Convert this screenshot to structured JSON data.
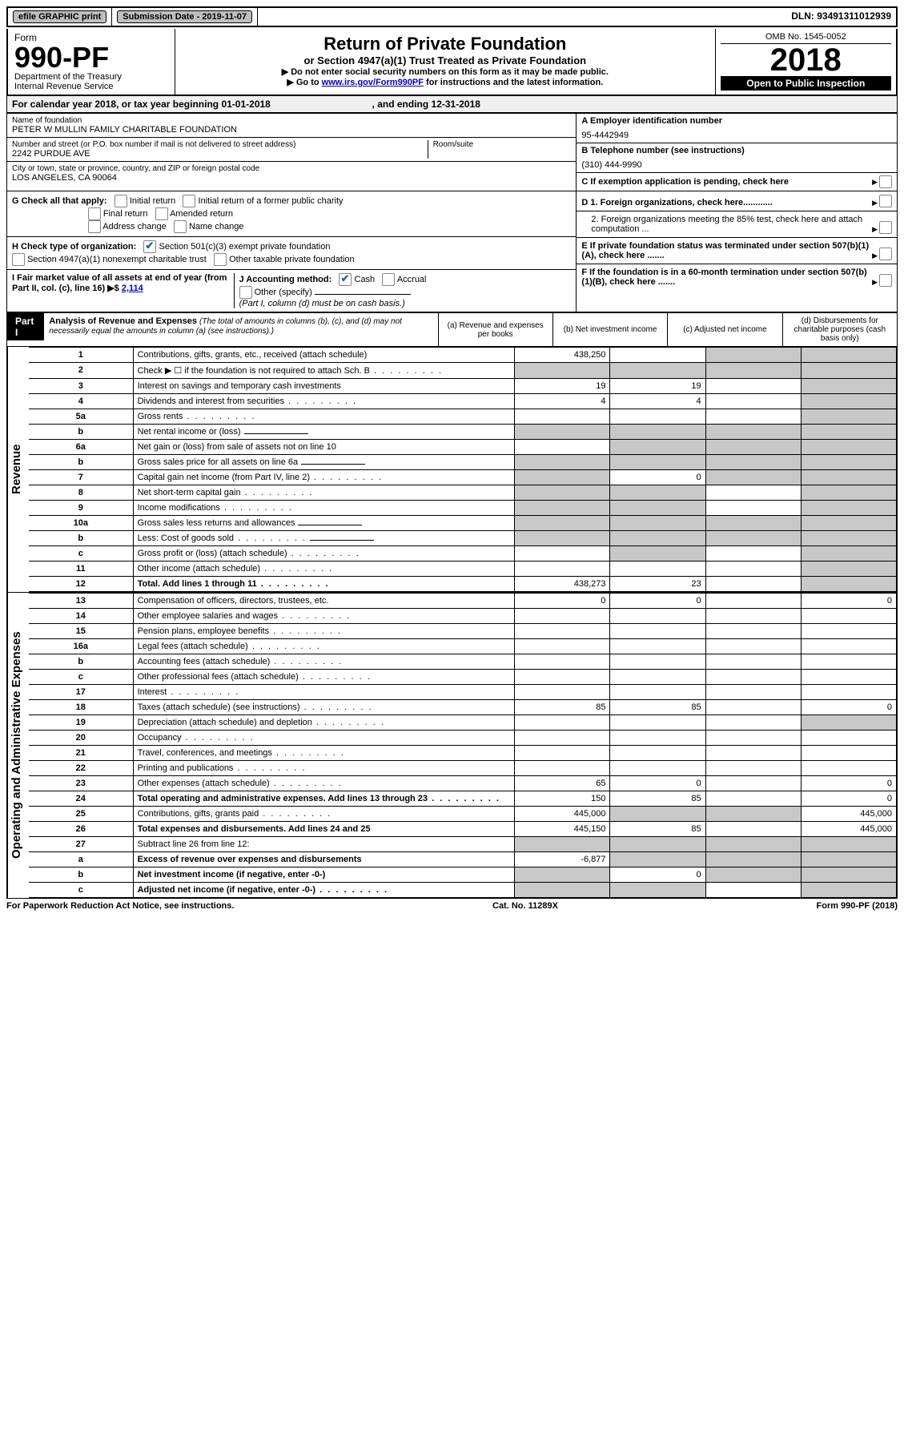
{
  "topbar": {
    "efile": "efile GRAPHIC print",
    "sub_label": "Submission Date - 2019-11-07",
    "dln": "DLN: 93491311012939"
  },
  "header": {
    "form_word": "Form",
    "form_num": "990-PF",
    "dept": "Department of the Treasury",
    "irs": "Internal Revenue Service",
    "title": "Return of Private Foundation",
    "subtitle": "or Section 4947(a)(1) Trust Treated as Private Foundation",
    "instr1": "▶ Do not enter social security numbers on this form as it may be made public.",
    "instr2_pre": "▶ Go to ",
    "instr2_link": "www.irs.gov/Form990PF",
    "instr2_post": " for instructions and the latest information.",
    "omb": "OMB No. 1545-0052",
    "year": "2018",
    "inspection": "Open to Public Inspection"
  },
  "cal": {
    "text_pre": "For calendar year 2018, or tax year beginning ",
    "begin": "01-01-2018",
    "mid": ", and ending ",
    "end": "12-31-2018"
  },
  "info": {
    "name_label": "Name of foundation",
    "name_value": "PETER W MULLIN FAMILY CHARITABLE FOUNDATION",
    "addr_label": "Number and street (or P.O. box number if mail is not delivered to street address)",
    "addr_value": "2242 PURDUE AVE",
    "room_label": "Room/suite",
    "city_label": "City or town, state or province, country, and ZIP or foreign postal code",
    "city_value": "LOS ANGELES, CA  90064",
    "a_label": "A Employer identification number",
    "a_value": "95-4442949",
    "b_label": "B Telephone number (see instructions)",
    "b_value": "(310) 444-9990",
    "c_label": "C If exemption application is pending, check here"
  },
  "checks": {
    "g_label": "G Check all that apply:",
    "g_initial": "Initial return",
    "g_initial_former": "Initial return of a former public charity",
    "g_final": "Final return",
    "g_amended": "Amended return",
    "g_address": "Address change",
    "g_name": "Name change",
    "h_label": "H Check type of organization:",
    "h_501c3": "Section 501(c)(3) exempt private foundation",
    "h_4947": "Section 4947(a)(1) nonexempt charitable trust",
    "h_other": "Other taxable private foundation",
    "i_label": "I Fair market value of all assets at end of year (from Part II, col. (c), line 16) ▶$",
    "i_value": "2,114",
    "j_label": "J Accounting method:",
    "j_cash": "Cash",
    "j_accrual": "Accrual",
    "j_other": "Other (specify)",
    "j_note": "(Part I, column (d) must be on cash basis.)",
    "d1": "D 1. Foreign organizations, check here............",
    "d2": "2. Foreign organizations meeting the 85% test, check here and attach computation ...",
    "e": "E If private foundation status was terminated under section 507(b)(1)(A), check here .......",
    "f": "F If the foundation is in a 60-month termination under section 507(b)(1)(B), check here .......",
    "arrow": "▶"
  },
  "part1": {
    "label": "Part I",
    "title": "Analysis of Revenue and Expenses",
    "note": "(The total of amounts in columns (b), (c), and (d) may not necessarily equal the amounts in column (a) (see instructions).)",
    "col_a": "(a) Revenue and expenses per books",
    "col_b": "(b) Net investment income",
    "col_c": "(c) Adjusted net income",
    "col_d": "(d) Disbursements for charitable purposes (cash basis only)"
  },
  "sides": {
    "revenue": "Revenue",
    "expenses": "Operating and Administrative Expenses"
  },
  "rows": [
    {
      "n": "1",
      "desc": "Contributions, gifts, grants, etc., received (attach schedule)",
      "a": "438,250",
      "b": "",
      "c_sh": true,
      "d_sh": true
    },
    {
      "n": "2",
      "desc": "Check ▶ ☐ if the foundation is not required to attach Sch. B",
      "a": "",
      "b": "",
      "a_sh": true,
      "b_sh": true,
      "c_sh": true,
      "d_sh": true,
      "dots": true
    },
    {
      "n": "3",
      "desc": "Interest on savings and temporary cash investments",
      "a": "19",
      "b": "19",
      "c": "",
      "d_sh": true
    },
    {
      "n": "4",
      "desc": "Dividends and interest from securities",
      "a": "4",
      "b": "4",
      "c": "",
      "d_sh": true,
      "dots": true
    },
    {
      "n": "5a",
      "desc": "Gross rents",
      "a": "",
      "b": "",
      "c": "",
      "d_sh": true,
      "dots": true
    },
    {
      "n": "b",
      "desc": "Net rental income or (loss)",
      "a_sh": true,
      "b_sh": true,
      "c_sh": true,
      "d_sh": true,
      "underline": true
    },
    {
      "n": "6a",
      "desc": "Net gain or (loss) from sale of assets not on line 10",
      "a": "",
      "b_sh": true,
      "c_sh": true,
      "d_sh": true
    },
    {
      "n": "b",
      "desc": "Gross sales price for all assets on line 6a",
      "a_sh": true,
      "b_sh": true,
      "c_sh": true,
      "d_sh": true,
      "underline": true
    },
    {
      "n": "7",
      "desc": "Capital gain net income (from Part IV, line 2)",
      "a_sh": true,
      "b": "0",
      "c_sh": true,
      "d_sh": true,
      "dots": true
    },
    {
      "n": "8",
      "desc": "Net short-term capital gain",
      "a_sh": true,
      "b_sh": true,
      "c": "",
      "d_sh": true,
      "dots": true
    },
    {
      "n": "9",
      "desc": "Income modifications",
      "a_sh": true,
      "b_sh": true,
      "c": "",
      "d_sh": true,
      "dots": true
    },
    {
      "n": "10a",
      "desc": "Gross sales less returns and allowances",
      "a_sh": true,
      "b_sh": true,
      "c_sh": true,
      "d_sh": true,
      "underline": true
    },
    {
      "n": "b",
      "desc": "Less: Cost of goods sold",
      "a_sh": true,
      "b_sh": true,
      "c_sh": true,
      "d_sh": true,
      "dots": true,
      "underline": true
    },
    {
      "n": "c",
      "desc": "Gross profit or (loss) (attach schedule)",
      "a": "",
      "b_sh": true,
      "c": "",
      "d_sh": true,
      "dots": true
    },
    {
      "n": "11",
      "desc": "Other income (attach schedule)",
      "a": "",
      "b": "",
      "c": "",
      "d_sh": true,
      "dots": true
    },
    {
      "n": "12",
      "desc": "Total. Add lines 1 through 11",
      "a": "438,273",
      "b": "23",
      "c": "",
      "d_sh": true,
      "bold": true,
      "dots": true
    }
  ],
  "exp_rows": [
    {
      "n": "13",
      "desc": "Compensation of officers, directors, trustees, etc.",
      "a": "0",
      "b": "0",
      "c": "",
      "d": "0"
    },
    {
      "n": "14",
      "desc": "Other employee salaries and wages",
      "a": "",
      "b": "",
      "c": "",
      "d": "",
      "dots": true
    },
    {
      "n": "15",
      "desc": "Pension plans, employee benefits",
      "a": "",
      "b": "",
      "c": "",
      "d": "",
      "dots": true
    },
    {
      "n": "16a",
      "desc": "Legal fees (attach schedule)",
      "a": "",
      "b": "",
      "c": "",
      "d": "",
      "dots": true
    },
    {
      "n": "b",
      "desc": "Accounting fees (attach schedule)",
      "a": "",
      "b": "",
      "c": "",
      "d": "",
      "dots": true
    },
    {
      "n": "c",
      "desc": "Other professional fees (attach schedule)",
      "a": "",
      "b": "",
      "c": "",
      "d": "",
      "dots": true
    },
    {
      "n": "17",
      "desc": "Interest",
      "a": "",
      "b": "",
      "c": "",
      "d": "",
      "dots": true
    },
    {
      "n": "18",
      "desc": "Taxes (attach schedule) (see instructions)",
      "a": "85",
      "b": "85",
      "c": "",
      "d": "0",
      "dots": true
    },
    {
      "n": "19",
      "desc": "Depreciation (attach schedule) and depletion",
      "a": "",
      "b": "",
      "c": "",
      "d_sh": true,
      "dots": true
    },
    {
      "n": "20",
      "desc": "Occupancy",
      "a": "",
      "b": "",
      "c": "",
      "d": "",
      "dots": true
    },
    {
      "n": "21",
      "desc": "Travel, conferences, and meetings",
      "a": "",
      "b": "",
      "c": "",
      "d": "",
      "dots": true
    },
    {
      "n": "22",
      "desc": "Printing and publications",
      "a": "",
      "b": "",
      "c": "",
      "d": "",
      "dots": true
    },
    {
      "n": "23",
      "desc": "Other expenses (attach schedule)",
      "a": "65",
      "b": "0",
      "c": "",
      "d": "0",
      "dots": true
    },
    {
      "n": "24",
      "desc": "Total operating and administrative expenses. Add lines 13 through 23",
      "a": "150",
      "b": "85",
      "c": "",
      "d": "0",
      "bold": true,
      "dots": true
    },
    {
      "n": "25",
      "desc": "Contributions, gifts, grants paid",
      "a": "445,000",
      "b_sh": true,
      "c_sh": true,
      "d": "445,000",
      "dots": true
    },
    {
      "n": "26",
      "desc": "Total expenses and disbursements. Add lines 24 and 25",
      "a": "445,150",
      "b": "85",
      "c": "",
      "d": "445,000",
      "bold": true
    },
    {
      "n": "27",
      "desc": "Subtract line 26 from line 12:",
      "a_sh": true,
      "b_sh": true,
      "c_sh": true,
      "d_sh": true
    },
    {
      "n": "a",
      "desc": "Excess of revenue over expenses and disbursements",
      "a": "-6,877",
      "b_sh": true,
      "c_sh": true,
      "d_sh": true,
      "bold": true
    },
    {
      "n": "b",
      "desc": "Net investment income (if negative, enter -0-)",
      "a_sh": true,
      "b": "0",
      "c_sh": true,
      "d_sh": true,
      "bold": true
    },
    {
      "n": "c",
      "desc": "Adjusted net income (if negative, enter -0-)",
      "a_sh": true,
      "b_sh": true,
      "c": "",
      "d_sh": true,
      "bold": true,
      "dots": true
    }
  ],
  "footer": {
    "left": "For Paperwork Reduction Act Notice, see instructions.",
    "mid": "Cat. No. 11289X",
    "right": "Form 990-PF (2018)"
  }
}
